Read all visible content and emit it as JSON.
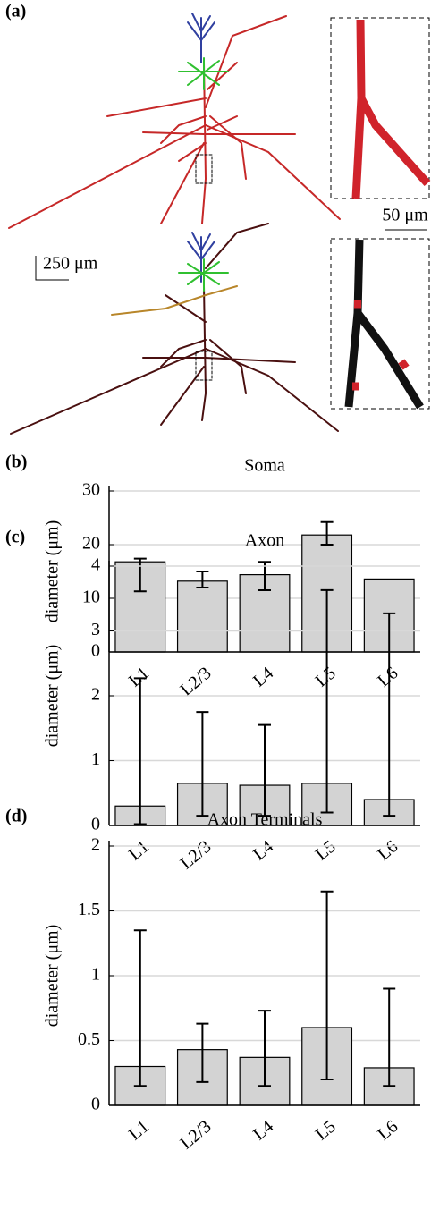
{
  "figure": {
    "panel_label": "(a)",
    "scale_small": "50 μm",
    "scale_large": "250 μm"
  },
  "chart_data": [
    {
      "type": "bar",
      "panel_label": "(b)",
      "title": "Soma",
      "ylabel": "diameter (μm)",
      "categories": [
        "L1",
        "L2/3",
        "L4",
        "L5",
        "L6"
      ],
      "values": [
        16.8,
        13.2,
        14.4,
        21.8,
        13.6
      ],
      "lower": [
        11.3,
        12.0,
        11.5,
        20.0,
        null
      ],
      "upper": [
        17.4,
        15.0,
        16.8,
        24.2,
        null
      ],
      "color": "#d3d3d3",
      "ylim": [
        0,
        30
      ],
      "yticks": [
        0,
        10,
        20,
        30
      ],
      "grid": true
    },
    {
      "type": "bar",
      "panel_label": "(c)",
      "title": "Axon",
      "ylabel": "diameter (μm)",
      "categories": [
        "L1",
        "L2/3",
        "L4",
        "L5",
        "L6"
      ],
      "values": [
        0.3,
        0.65,
        0.62,
        0.65,
        0.4
      ],
      "lower": [
        0.02,
        0.15,
        0.15,
        0.2,
        0.15
      ],
      "upper": [
        2.27,
        1.75,
        1.55,
        3.63,
        3.27
      ],
      "color": "#d3d3d3",
      "ylim": [
        0,
        4
      ],
      "yticks": [
        0,
        1,
        2,
        3,
        4
      ],
      "grid": true
    },
    {
      "type": "bar",
      "panel_label": "(d)",
      "title": "Axon Terminals",
      "ylabel": "diameter (μm)",
      "categories": [
        "L1",
        "L2/3",
        "L4",
        "L5",
        "L6"
      ],
      "values": [
        0.3,
        0.43,
        0.37,
        0.6,
        0.29
      ],
      "lower": [
        0.15,
        0.18,
        0.15,
        0.2,
        0.15
      ],
      "upper": [
        1.35,
        0.63,
        0.73,
        1.65,
        0.9
      ],
      "color": "#d3d3d3",
      "ylim": [
        0,
        2
      ],
      "yticks": [
        0,
        0.5,
        1,
        1.5,
        2
      ],
      "grid": true
    }
  ]
}
